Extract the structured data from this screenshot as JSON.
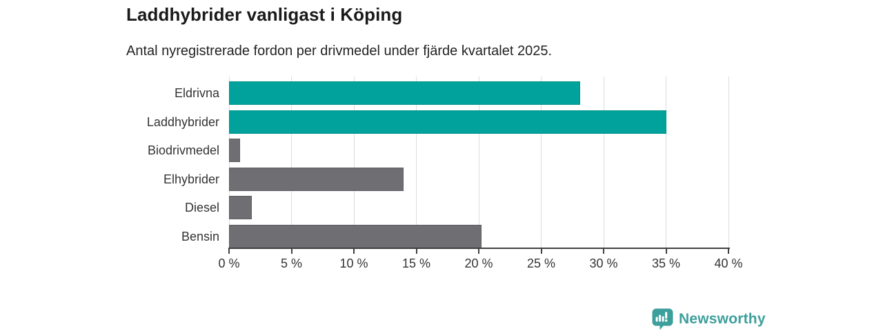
{
  "title": "Laddhybrider vanligast i Köping",
  "subtitle": "Antal nyregistrerade fordon per drivmedel under fjärde kvartalet 2025.",
  "brand": {
    "name": "Newsworthy",
    "color": "#3d9f9c",
    "icon": "newsworthy-speech-bubble-bar-chart"
  },
  "chart_data": {
    "type": "bar",
    "orientation": "horizontal",
    "title": "Laddhybrider vanligast i Köping",
    "subtitle": "Antal nyregistrerade fordon per drivmedel under fjärde kvartalet 2025.",
    "categories": [
      "Eldrivna",
      "Laddhybrider",
      "Biodrivmedel",
      "Elhybrider",
      "Diesel",
      "Bensin"
    ],
    "values": [
      28.1,
      35.0,
      0.9,
      14.0,
      1.8,
      20.2
    ],
    "unit": "%",
    "xlim": [
      0,
      40
    ],
    "x_tick_values": [
      0,
      5,
      10,
      15,
      20,
      25,
      30,
      35,
      40
    ],
    "x_tick_labels": [
      "0 %",
      "5 %",
      "10 %",
      "15 %",
      "20 %",
      "25 %",
      "30 %",
      "35 %",
      "40 %"
    ],
    "grid": true,
    "legend": false,
    "highlight_color": "#00a29b",
    "base_color": "#6e6e73",
    "bar_colors": [
      "#00a29b",
      "#00a29b",
      "#6e6e73",
      "#6e6e73",
      "#6e6e73",
      "#6e6e73"
    ],
    "bar_border_colors": [
      "#00948d",
      "#00948d",
      "#5c5c61",
      "#5c5c61",
      "#5c5c61",
      "#5c5c61"
    ],
    "style": {
      "grid_color": "#dcdcdc",
      "axis_color": "#3f3f3f",
      "tick_label_color": "#333333",
      "category_label_color": "#333333",
      "title_color": "#1a1a1a"
    }
  }
}
